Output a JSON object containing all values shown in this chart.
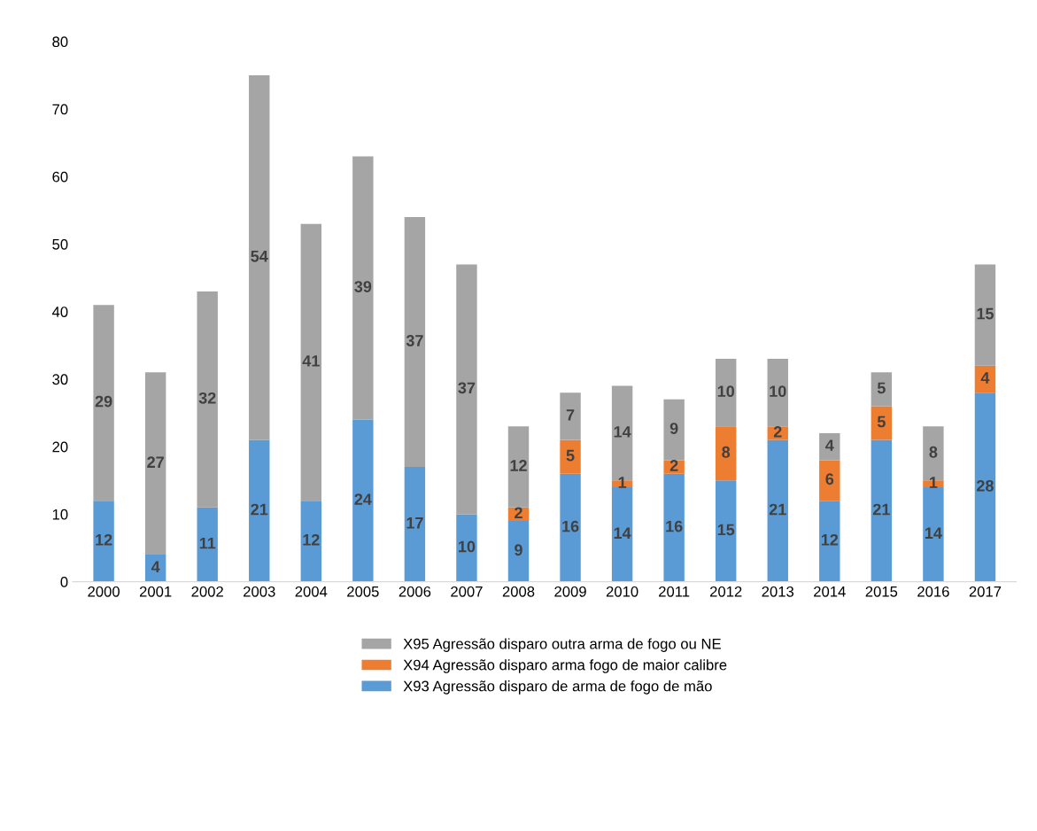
{
  "chart_data": {
    "type": "bar",
    "stacked": true,
    "categories": [
      "2000",
      "2001",
      "2002",
      "2003",
      "2004",
      "2005",
      "2006",
      "2007",
      "2008",
      "2009",
      "2010",
      "2011",
      "2012",
      "2013",
      "2014",
      "2015",
      "2016",
      "2017"
    ],
    "series": [
      {
        "name": "X93 Agressão disparo de arma de fogo de mão",
        "color": "#5b9bd5",
        "values": [
          12,
          4,
          11,
          21,
          12,
          24,
          17,
          10,
          9,
          16,
          14,
          16,
          15,
          21,
          12,
          21,
          14,
          28
        ]
      },
      {
        "name": "X94 Agressão disparo arma fogo de maior calibre",
        "color": "#ed7d31",
        "values": [
          null,
          null,
          null,
          null,
          null,
          null,
          null,
          null,
          2,
          5,
          1,
          2,
          8,
          2,
          6,
          5,
          1,
          4
        ]
      },
      {
        "name": "X95 Agressão disparo outra arma de fogo ou NE",
        "color": "#a5a5a5",
        "values": [
          29,
          27,
          32,
          54,
          41,
          39,
          37,
          37,
          12,
          7,
          14,
          9,
          10,
          10,
          4,
          5,
          8,
          15
        ]
      }
    ],
    "ylim": [
      0,
      80
    ],
    "yticks": [
      0,
      10,
      20,
      30,
      40,
      50,
      60,
      70,
      80
    ],
    "data_labels": true,
    "grid": false,
    "legend": "bottom"
  }
}
